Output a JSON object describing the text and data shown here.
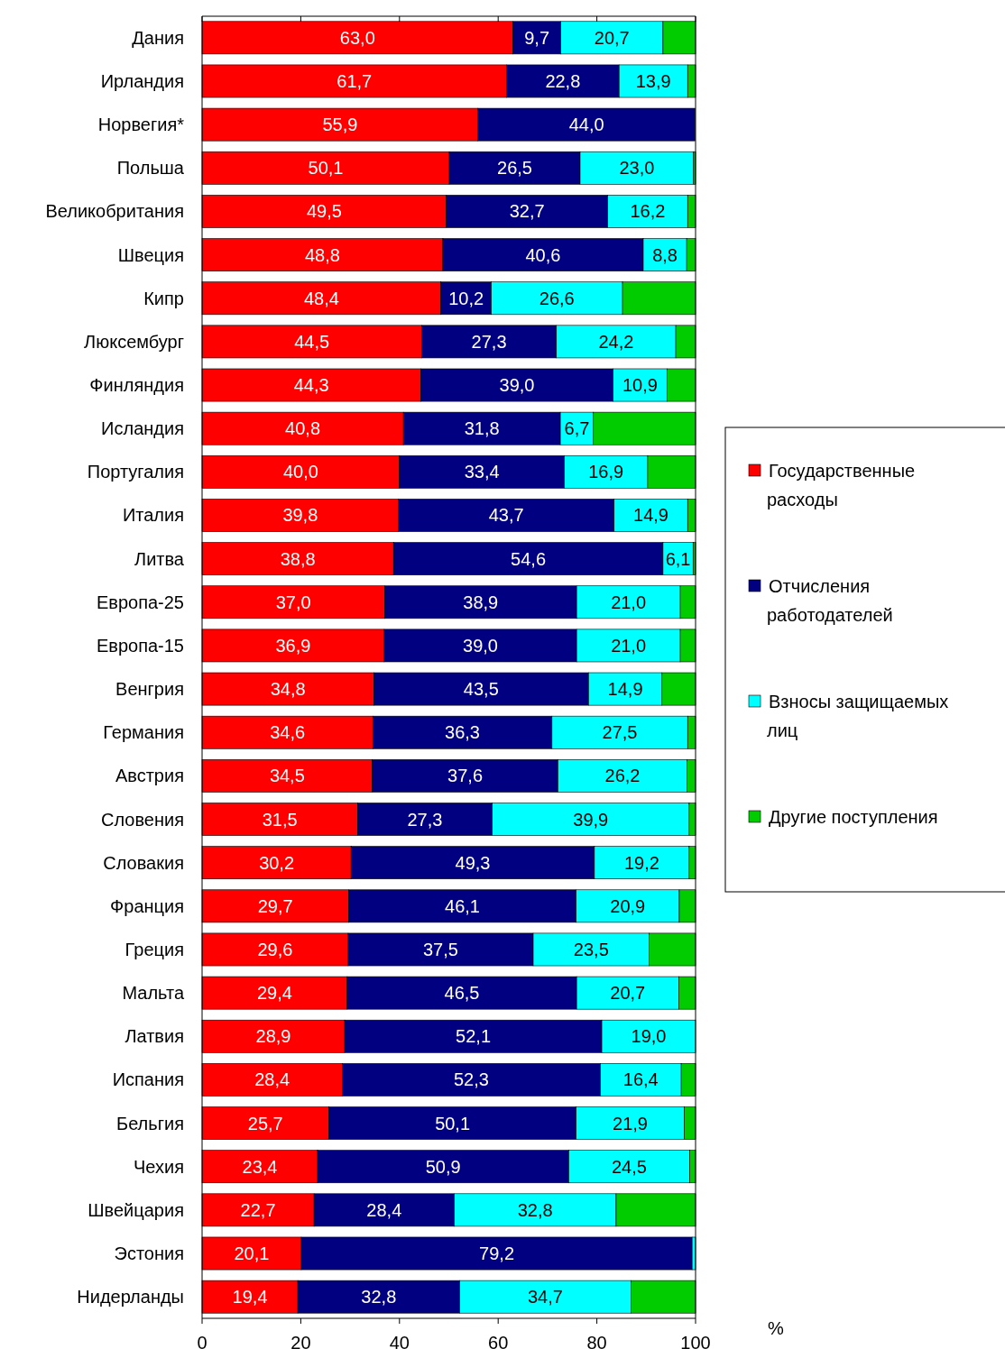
{
  "chart_data": {
    "type": "bar",
    "orientation": "horizontal",
    "stacked": true,
    "xlabel": "%",
    "xlim": [
      0,
      100
    ],
    "xticks": [
      0,
      20,
      40,
      60,
      80,
      100
    ],
    "legend": "right",
    "grid": false,
    "categories": [
      "Дания",
      "Ирландия",
      "Норвегия*",
      "Польша",
      "Великобритания",
      "Швеция",
      "Кипр",
      "Люксембург",
      "Финляндия",
      "Исландия",
      "Португалия",
      "Италия",
      "Литва",
      "Европа-25",
      "Европа-15",
      "Венгрия",
      "Германия",
      "Австрия",
      "Словения",
      "Словакия",
      "Франция",
      "Греция",
      "Мальта",
      "Латвия",
      "Испания",
      "Бельгия",
      "Чехия",
      "Швейцария",
      "Эстония",
      "Нидерланды"
    ],
    "series": [
      {
        "name": "Государственные расходы",
        "color": "#ff0000",
        "values": [
          63.0,
          61.7,
          55.9,
          50.1,
          49.5,
          48.8,
          48.4,
          44.5,
          44.3,
          40.8,
          40.0,
          39.8,
          38.8,
          37.0,
          36.9,
          34.8,
          34.6,
          34.5,
          31.5,
          30.2,
          29.7,
          29.6,
          29.4,
          28.9,
          28.4,
          25.7,
          23.4,
          22.7,
          20.1,
          19.4
        ],
        "value_labels": [
          "63,0",
          "61,7",
          "55,9",
          "50,1",
          "49,5",
          "48,8",
          "48,4",
          "44,5",
          "44,3",
          "40,8",
          "40,0",
          "39,8",
          "38,8",
          "37,0",
          "36,9",
          "34,8",
          "34,6",
          "34,5",
          "31,5",
          "30,2",
          "29,7",
          "29,6",
          "29,4",
          "28,9",
          "28,4",
          "25,7",
          "23,4",
          "22,7",
          "20,1",
          "19,4"
        ]
      },
      {
        "name": "Отчисления работодателей",
        "color": "#000080",
        "values": [
          9.7,
          22.8,
          44.0,
          26.5,
          32.7,
          40.6,
          10.2,
          27.3,
          39.0,
          31.8,
          33.4,
          43.7,
          54.6,
          38.9,
          39.0,
          43.5,
          36.3,
          37.6,
          27.3,
          49.3,
          46.1,
          37.5,
          46.5,
          52.1,
          52.3,
          50.1,
          50.9,
          28.4,
          79.2,
          32.8
        ],
        "value_labels": [
          "9,7",
          "22,8",
          "44,0",
          "26,5",
          "32,7",
          "40,6",
          "10,2",
          "27,3",
          "39,0",
          "31,8",
          "33,4",
          "43,7",
          "54,6",
          "38,9",
          "39,0",
          "43,5",
          "36,3",
          "37,6",
          "27,3",
          "49,3",
          "46,1",
          "37,5",
          "46,5",
          "52,1",
          "52,3",
          "50,1",
          "50,9",
          "28,4",
          "79,2",
          "32,8"
        ]
      },
      {
        "name": "Взносы защищаемых лиц",
        "color": "#00ffff",
        "values": [
          20.7,
          13.9,
          null,
          23.0,
          16.2,
          8.8,
          26.6,
          24.2,
          10.9,
          6.7,
          16.9,
          14.9,
          6.1,
          21.0,
          21.0,
          14.9,
          27.5,
          26.2,
          39.9,
          19.2,
          20.9,
          23.5,
          20.7,
          19.0,
          16.4,
          21.9,
          24.5,
          32.8,
          0.7,
          34.7
        ],
        "value_labels": [
          "20,7",
          "13,9",
          null,
          "23,0",
          "16,2",
          "8,8",
          "26,6",
          "24,2",
          "10,9",
          "6,7",
          "16,9",
          "14,9",
          "6,1",
          "21,0",
          "21,0",
          "14,9",
          "27,5",
          "26,2",
          "39,9",
          "19,2",
          "20,9",
          "23,5",
          "20,7",
          "19,0",
          "16,4",
          "21,9",
          "24,5",
          "32,8",
          null,
          "34,7"
        ]
      },
      {
        "name": "Другие поступления",
        "color": "#00cc00",
        "values": [
          6.6,
          1.6,
          null,
          0.4,
          1.6,
          1.8,
          14.8,
          4.0,
          5.8,
          20.7,
          9.7,
          1.6,
          0.5,
          3.1,
          3.1,
          6.8,
          1.6,
          1.7,
          1.3,
          1.3,
          3.3,
          9.4,
          3.4,
          null,
          2.9,
          2.3,
          1.2,
          16.1,
          null,
          13.1
        ]
      }
    ]
  }
}
